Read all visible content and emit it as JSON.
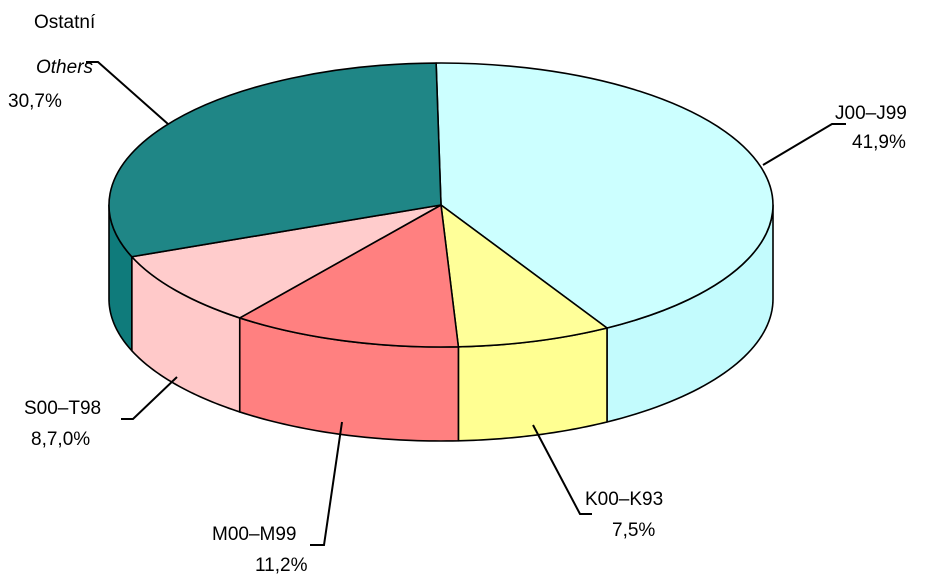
{
  "chart_data": {
    "type": "pie",
    "three_d": true,
    "slices": [
      {
        "name": "J00–J99",
        "sublabel": "",
        "value": 41.9,
        "value_label": "41,9%",
        "top": "#ccffff",
        "side": "#c3fbfd"
      },
      {
        "name": "K00–K93",
        "sublabel": "",
        "value": 7.5,
        "value_label": "7,5%",
        "top": "#ffff99",
        "side": "#ffff92"
      },
      {
        "name": "M00–M99",
        "sublabel": "",
        "value": 11.2,
        "value_label": "11,2%",
        "top": "#ff8080",
        "side": "#ff8080"
      },
      {
        "name": "S00–T98",
        "sublabel": "",
        "value": 8.7,
        "value_label": "8,7,0%",
        "top": "#ffcccc",
        "side": "#ffc9c9"
      },
      {
        "name": "Ostatní",
        "sublabel": "Others",
        "value": 30.7,
        "value_label": "30,7%",
        "top": "#1f8686",
        "side": "#0f7b7b"
      }
    ]
  }
}
